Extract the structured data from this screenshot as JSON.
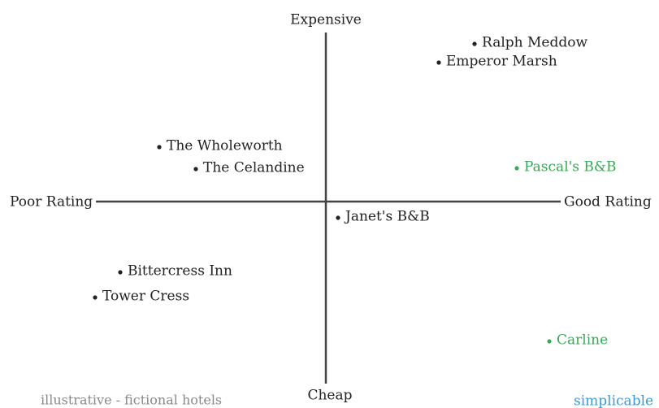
{
  "axes": {
    "top": "Expensive",
    "bottom": "Cheap",
    "left": "Poor Rating",
    "right": "Good Rating"
  },
  "items": [
    {
      "label": "Ralph Meddow",
      "color": "#222222"
    },
    {
      "label": "Emperor Marsh",
      "color": "#222222"
    },
    {
      "label": "The Wholeworth",
      "color": "#222222"
    },
    {
      "label": "The Celandine",
      "color": "#222222"
    },
    {
      "label": "Pascal's B&B",
      "color": "#3aa856"
    },
    {
      "label": "Janet's B&B",
      "color": "#222222"
    },
    {
      "label": "Bittercress Inn",
      "color": "#222222"
    },
    {
      "label": "Tower Cress",
      "color": "#222222"
    },
    {
      "label": "Carline",
      "color": "#3aa856"
    }
  ],
  "footer": {
    "note": "illustrative - fictional hotels",
    "brand": "simplicable"
  }
}
